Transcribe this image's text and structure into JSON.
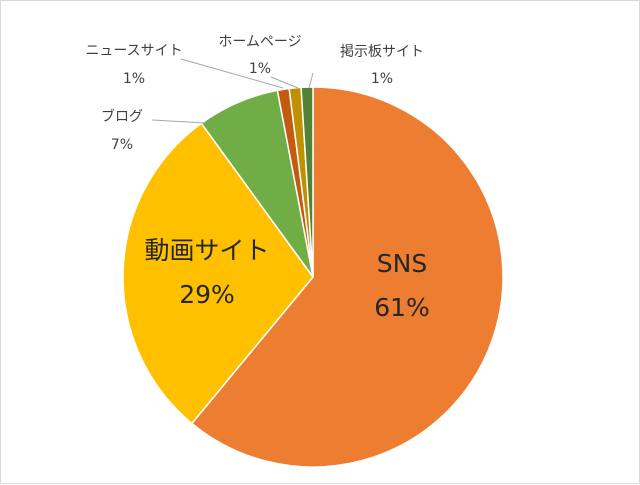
{
  "chart_data": {
    "type": "pie",
    "title": "",
    "slices": [
      {
        "label": "SNS",
        "value": 61,
        "value_label": "61%",
        "color": "#ED7D31"
      },
      {
        "label": "動画サイト",
        "value": 29,
        "value_label": "29%",
        "color": "#FFC000"
      },
      {
        "label": "ブログ",
        "value": 7,
        "value_label": "7%",
        "color": "#70AD47"
      },
      {
        "label": "ニュースサイト",
        "value": 1,
        "value_label": "1%",
        "color": "#C55A11"
      },
      {
        "label": "ホームページ",
        "value": 1,
        "value_label": "1%",
        "color": "#BF9000"
      },
      {
        "label": "掲示板サイト",
        "value": 1,
        "value_label": "1%",
        "color": "#548235"
      }
    ],
    "legend": "none"
  }
}
